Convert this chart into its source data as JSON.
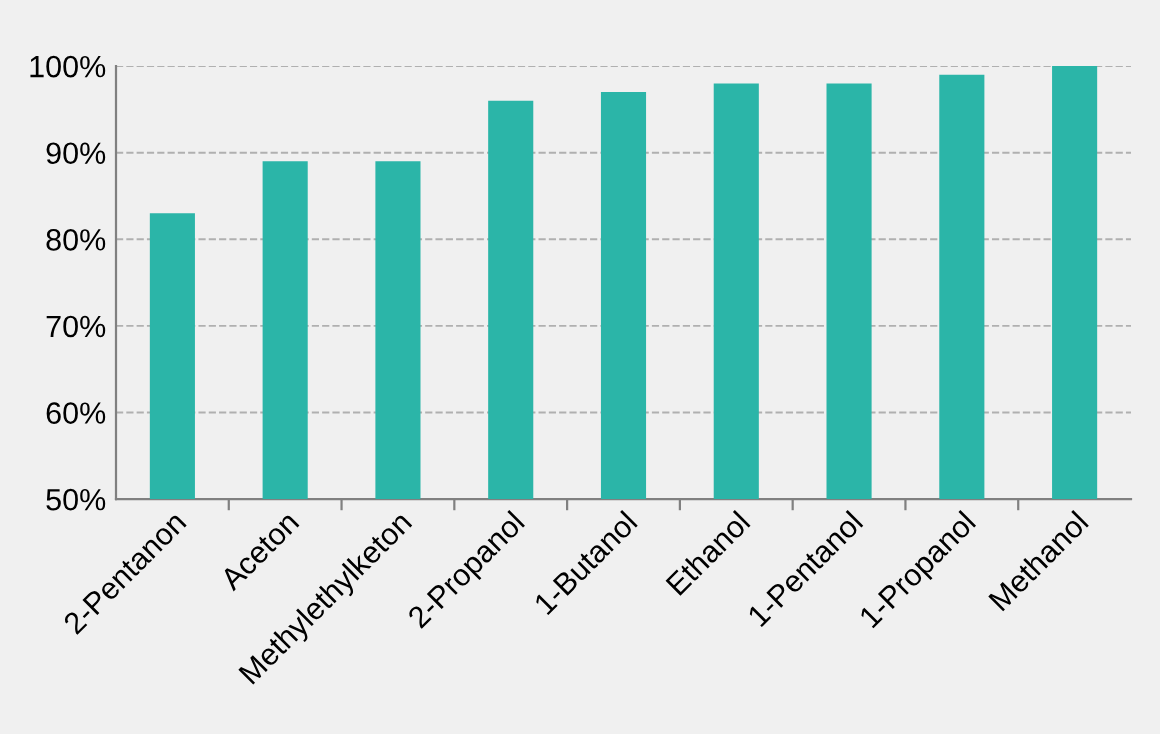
{
  "chart_data": {
    "type": "bar",
    "categories": [
      "2-Pentanon",
      "Aceton",
      "Methylethylketon",
      "2-Propanol",
      "1-Butanol",
      "Ethanol",
      "1-Pentanol",
      "1-Propanol",
      "Methanol"
    ],
    "values": [
      83,
      89,
      89,
      96,
      97,
      98,
      98,
      99,
      100
    ],
    "color": "#2bb5a8",
    "ylim": [
      50,
      100
    ],
    "yticks": [
      {
        "value": 50,
        "label": "50%"
      },
      {
        "value": 60,
        "label": "60%"
      },
      {
        "value": 70,
        "label": "70%"
      },
      {
        "value": 80,
        "label": "80%"
      },
      {
        "value": 90,
        "label": "90%"
      },
      {
        "value": 100,
        "label": "100%"
      }
    ],
    "grid": "y",
    "line_style": "dashed"
  }
}
